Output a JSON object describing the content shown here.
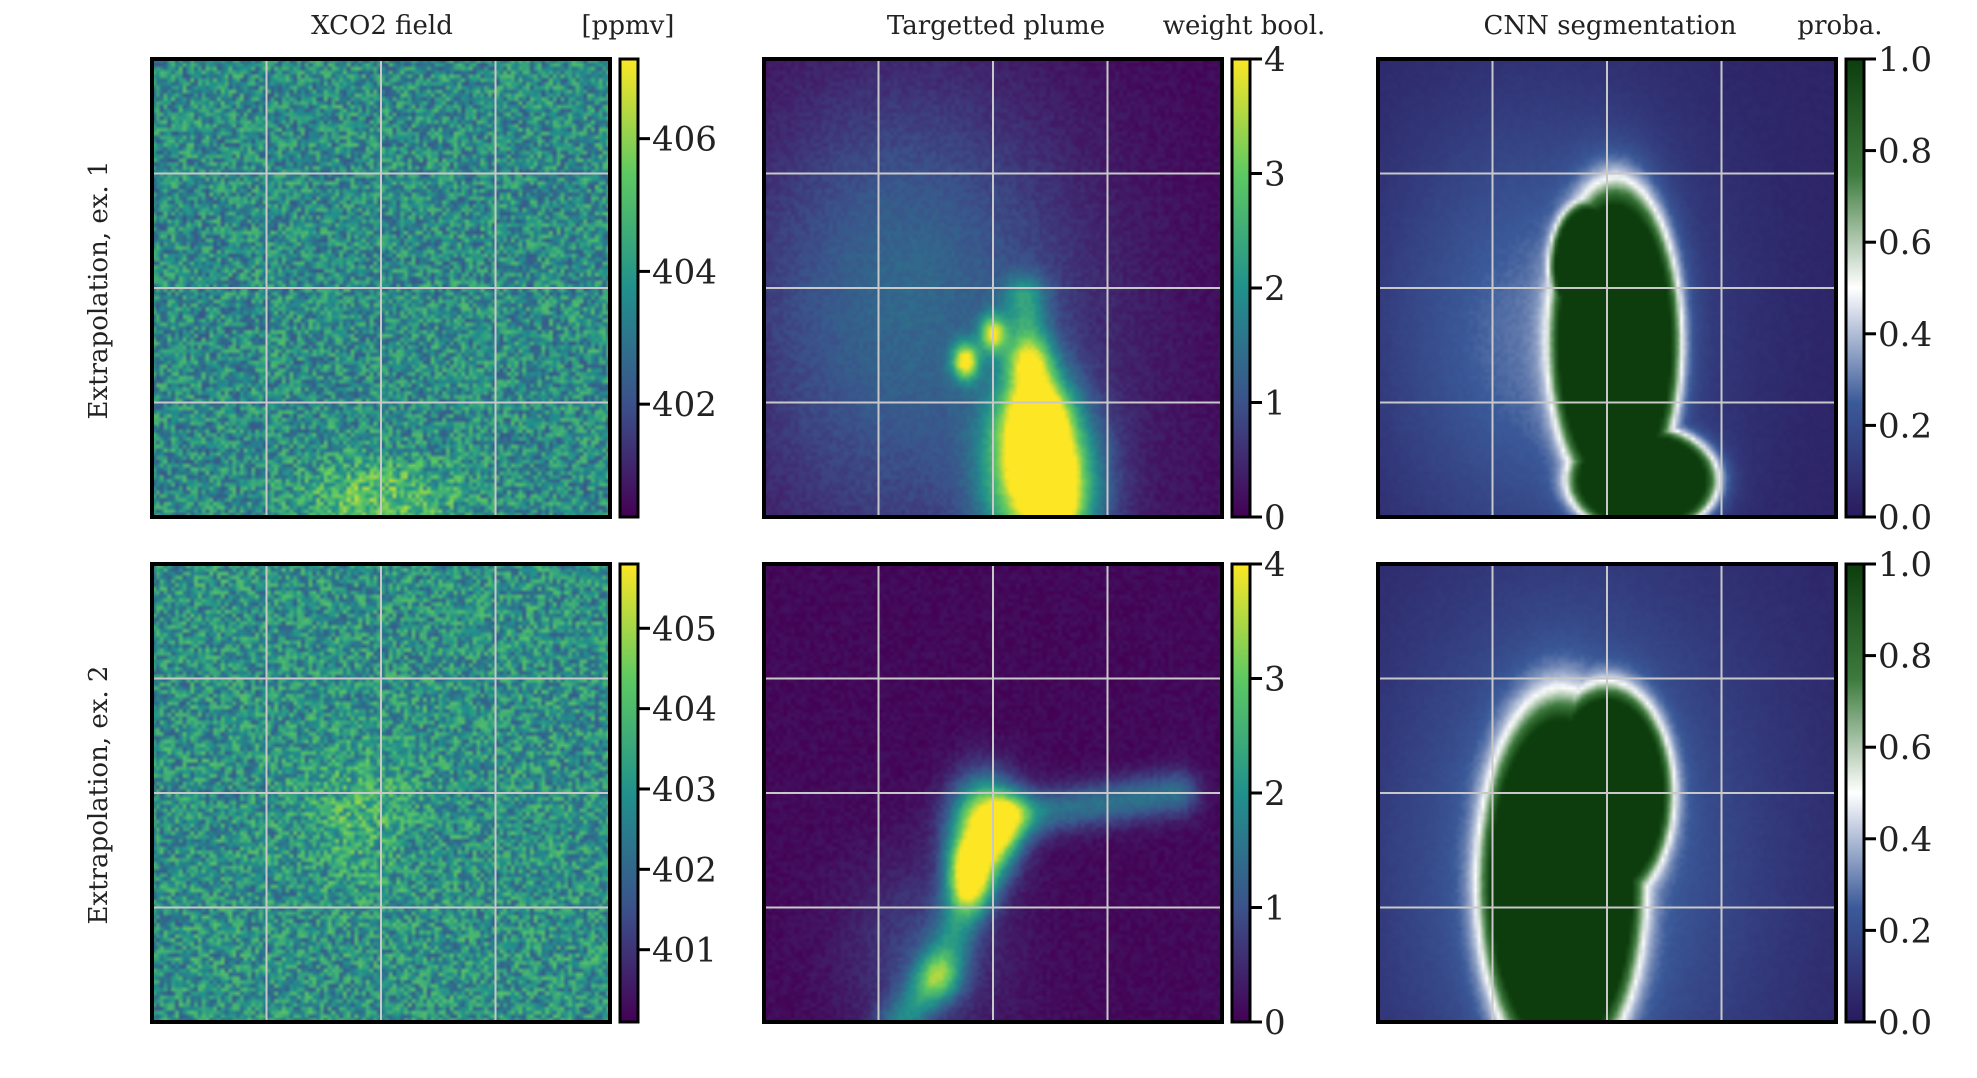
{
  "column_titles": [
    "XCO2 field",
    "Targetted plume",
    "CNN segmentation"
  ],
  "colorbar_titles": [
    "[ppmv]",
    "weight bool.",
    "proba."
  ],
  "row_labels": [
    "Extrapolation, ex. 1",
    "Extrapolation, ex. 2"
  ],
  "colors": {
    "viridis": [
      "#440154",
      "#3b528b",
      "#21918c",
      "#5ec962",
      "#fde725"
    ],
    "segmentation": [
      "#2a1a5e",
      "#3b5a99",
      "#ffffff",
      "#3d7a3d",
      "#0d3d0d"
    ],
    "grid": "#c8c8c8",
    "frame": "#000000"
  },
  "chart_data": [
    {
      "type": "heatmap",
      "panel": "row1-col1",
      "title": "XCO2 field",
      "colorbar_label": "[ppmv]",
      "colorbar": {
        "range": [
          400.3,
          407.2
        ],
        "ticks": [
          402,
          404,
          406
        ],
        "tick_labels": [
          "402",
          "404",
          "406"
        ]
      },
      "colormap": "viridis",
      "field": {
        "kind": "noise",
        "base": 0.48,
        "noise": 0.22,
        "seed": 11,
        "plume": [
          {
            "x": 0.5,
            "y": 0.96,
            "amp": 0.25,
            "sx": 0.12,
            "sy": 0.06
          }
        ]
      },
      "grid": true
    },
    {
      "type": "heatmap",
      "panel": "row1-col2",
      "title": "Targetted plume",
      "colorbar_label": "weight bool.",
      "colorbar": {
        "range": [
          0,
          4
        ],
        "ticks": [
          0,
          1,
          2,
          3,
          4
        ],
        "tick_labels": [
          "0",
          "1",
          "2",
          "3",
          "4"
        ]
      },
      "colormap": "viridis",
      "field": {
        "kind": "plume",
        "seed": 21,
        "path": [
          [
            0.57,
            0.52
          ],
          [
            0.58,
            0.66
          ],
          [
            0.6,
            0.78
          ],
          [
            0.62,
            0.9
          ],
          [
            0.64,
            0.98
          ]
        ],
        "haze": [
          [
            0.3,
            0.4,
            0.25
          ],
          [
            0.35,
            0.75,
            0.3
          ]
        ],
        "core": [
          [
            0.61,
            0.94,
            0.08,
            1.0
          ],
          [
            0.59,
            0.8,
            0.06,
            0.7
          ],
          [
            0.44,
            0.66,
            0.02,
            0.8
          ],
          [
            0.5,
            0.6,
            0.02,
            0.7
          ]
        ]
      },
      "grid": true
    },
    {
      "type": "heatmap",
      "panel": "row1-col3",
      "title": "CNN segmentation",
      "colorbar_label": "proba.",
      "colorbar": {
        "range": [
          0,
          1.0
        ],
        "ticks": [
          0,
          0.2,
          0.4,
          0.6,
          0.8,
          1.0
        ],
        "tick_labels": [
          "0.0",
          "0.2",
          "0.4",
          "0.6",
          "0.8",
          "1.0"
        ]
      },
      "colormap": "segmentation",
      "field": {
        "kind": "blob",
        "seed": 31,
        "blob": [
          [
            0.52,
            0.62,
            0.12,
            0.3
          ],
          [
            0.46,
            0.45,
            0.07,
            0.12
          ],
          [
            0.58,
            0.92,
            0.14,
            0.1
          ]
        ],
        "halo": [
          [
            0.35,
            0.6,
            0.25,
            0.35
          ]
        ]
      },
      "grid": true
    },
    {
      "type": "heatmap",
      "panel": "row2-col1",
      "title": "",
      "colorbar_label": "",
      "colorbar": {
        "range": [
          400.1,
          405.8
        ],
        "ticks": [
          401,
          402,
          403,
          404,
          405
        ],
        "tick_labels": [
          "401",
          "402",
          "403",
          "404",
          "405"
        ]
      },
      "colormap": "viridis",
      "field": {
        "kind": "noise",
        "base": 0.5,
        "noise": 0.22,
        "seed": 41,
        "plume": [
          {
            "x": 0.45,
            "y": 0.55,
            "amp": 0.15,
            "sx": 0.08,
            "sy": 0.1
          }
        ]
      },
      "grid": true
    },
    {
      "type": "heatmap",
      "panel": "row2-col2",
      "title": "",
      "colorbar_label": "",
      "colorbar": {
        "range": [
          0,
          4
        ],
        "ticks": [
          0,
          1,
          2,
          3,
          4
        ],
        "tick_labels": [
          "0",
          "1",
          "2",
          "3",
          "4"
        ]
      },
      "colormap": "viridis",
      "field": {
        "kind": "plume",
        "seed": 51,
        "path": [
          [
            0.9,
            0.5
          ],
          [
            0.54,
            0.55
          ],
          [
            0.45,
            0.72
          ],
          [
            0.38,
            0.9
          ],
          [
            0.3,
            1.0
          ]
        ],
        "haze": [
          [
            0.35,
            0.85,
            0.12
          ]
        ],
        "core": [
          [
            0.48,
            0.57,
            0.05,
            1.0
          ],
          [
            0.44,
            0.66,
            0.03,
            0.6
          ]
        ]
      },
      "grid": true
    },
    {
      "type": "heatmap",
      "panel": "row2-col3",
      "title": "",
      "colorbar_label": "",
      "colorbar": {
        "range": [
          0,
          1.0
        ],
        "ticks": [
          0,
          0.2,
          0.4,
          0.6,
          0.8,
          1.0
        ],
        "tick_labels": [
          "0.0",
          "0.2",
          "0.4",
          "0.6",
          "0.8",
          "1.0"
        ]
      },
      "colormap": "segmentation",
      "field": {
        "kind": "blob",
        "seed": 61,
        "blob": [
          [
            0.4,
            0.7,
            0.15,
            0.35
          ],
          [
            0.5,
            0.5,
            0.12,
            0.2
          ]
        ],
        "halo": [
          [
            0.42,
            0.65,
            0.3,
            0.45
          ]
        ]
      },
      "grid": true
    }
  ]
}
